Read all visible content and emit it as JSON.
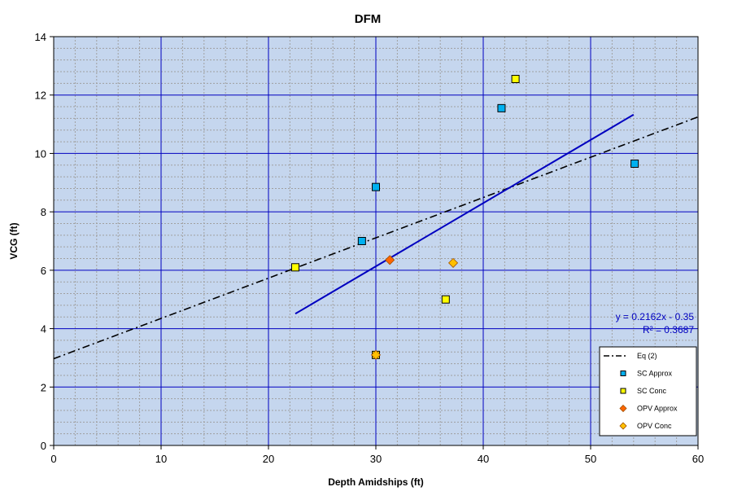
{
  "chart_data": {
    "type": "scatter",
    "title": "DFM",
    "xlabel": "Depth Amidships  (ft)",
    "ylabel": "VCG (ft)",
    "xlim": [
      0,
      60
    ],
    "ylim": [
      0,
      14
    ],
    "x_ticks": [
      0,
      10,
      20,
      30,
      40,
      50,
      60
    ],
    "y_ticks": [
      0,
      2,
      4,
      6,
      8,
      10,
      12,
      14
    ],
    "grid": true,
    "legend_position": "bottom-right",
    "colors": {
      "plot_background": "#c5d6ee",
      "major_grid": "#0000c0",
      "minor_grid": "#a0a0a0",
      "eq_line": "#000000",
      "trendline": "#0000c0",
      "sc_approx": "#00b0f0",
      "sc_conc": "#ffff00",
      "opv_approx": "#ff6600",
      "opv_conc": "#ffc000"
    },
    "series": [
      {
        "name": "Eq (2)",
        "kind": "line",
        "style": "dash-dot",
        "x": [
          0,
          60
        ],
        "y": [
          2.97,
          11.25
        ]
      },
      {
        "name": "SC Approx",
        "kind": "scatter",
        "marker": "square",
        "x": [
          28.7,
          30.0,
          41.7,
          54.1
        ],
        "y": [
          7.0,
          8.85,
          11.55,
          9.65
        ]
      },
      {
        "name": "SC Conc",
        "kind": "scatter",
        "marker": "square",
        "x": [
          22.5,
          30.0,
          36.5,
          43.0
        ],
        "y": [
          6.1,
          3.1,
          5.0,
          12.55
        ]
      },
      {
        "name": "OPV Approx",
        "kind": "scatter",
        "marker": "diamond",
        "x": [
          31.3
        ],
        "y": [
          6.35
        ]
      },
      {
        "name": "OPV Conc",
        "kind": "scatter",
        "marker": "diamond",
        "x": [
          30.0,
          37.2
        ],
        "y": [
          3.1,
          6.25
        ]
      }
    ],
    "trendline": {
      "x": [
        22.5,
        54.0
      ],
      "y": [
        4.51,
        11.33
      ]
    },
    "annotations": [
      "y = 0.2162x - 0.35",
      "R² = 0.3687"
    ]
  }
}
